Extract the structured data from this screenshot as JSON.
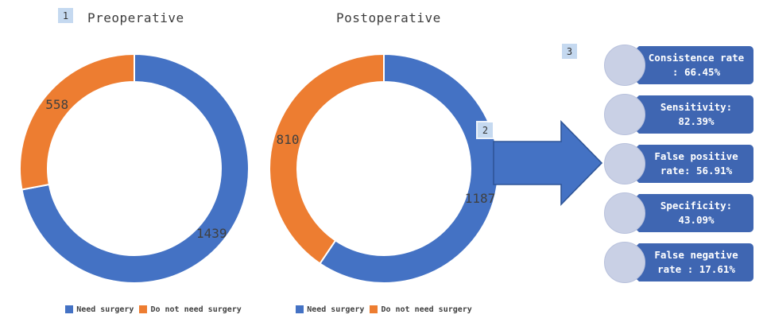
{
  "annotations": {
    "badge1": "1",
    "badge2": "2",
    "badge3": "3"
  },
  "colors": {
    "blue": "#4472C4",
    "orange": "#ED7D31",
    "banner_blue": "#3F66B2",
    "arrow_stroke": "#2F5597",
    "badge_bg": "#C5D9F0",
    "badge_text": "#333333",
    "circle_fill": "#C9D0E5",
    "circle_border": "#B8C1DC",
    "label_text": "#404040",
    "legend_text": "#3F3F3F",
    "title_text": "#3D3D3D"
  },
  "chart_data": [
    {
      "type": "pie",
      "subtype": "donut",
      "title": "Preoperative",
      "categories": [
        "Need surgery",
        "Do not need surgery"
      ],
      "values": [
        1439,
        558
      ],
      "colors": [
        "#4472C4",
        "#ED7D31"
      ],
      "data_labels": [
        "1439",
        "558"
      ],
      "legend_position": "bottom",
      "start_angle_deg": 0,
      "direction": "clockwise",
      "donut_hole_ratio": 0.76
    },
    {
      "type": "pie",
      "subtype": "donut",
      "title": "Postoperative",
      "categories": [
        "Need surgery",
        "Do not need surgery"
      ],
      "values": [
        1187,
        810
      ],
      "colors": [
        "#4472C4",
        "#ED7D31"
      ],
      "data_labels": [
        "1187",
        "810"
      ],
      "legend_position": "bottom",
      "start_angle_deg": 0,
      "direction": "clockwise",
      "donut_hole_ratio": 0.76
    }
  ],
  "stats": [
    {
      "line1": "Consistence rate",
      "line2": ": 66.45%"
    },
    {
      "line1": "Sensitivity:",
      "line2": "82.39%"
    },
    {
      "line1": "False positive",
      "line2": "rate: 56.91%"
    },
    {
      "line1": "Specificity:",
      "line2": "43.09%"
    },
    {
      "line1": "False negative",
      "line2": "rate : 17.61%"
    }
  ]
}
